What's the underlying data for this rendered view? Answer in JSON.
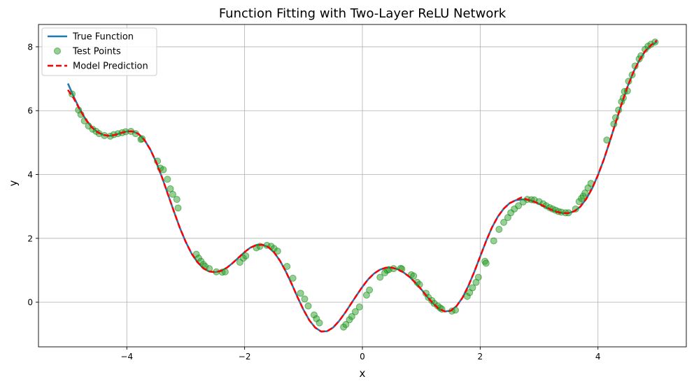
{
  "chart_data": {
    "type": "line",
    "title": "Function Fitting with Two-Layer ReLU Network",
    "xlabel": "x",
    "ylabel": "y",
    "xlim": [
      -5.5,
      5.5
    ],
    "ylim": [
      -1.4,
      8.7
    ],
    "xticks": [
      -4,
      -2,
      0,
      2,
      4
    ],
    "yticks": [
      0,
      2,
      4,
      6,
      8
    ],
    "grid": true,
    "legend_position": "top-left",
    "legend": [
      "True Function",
      "Test Points",
      "Model Prediction"
    ],
    "colors": {
      "true_function": "#1f77b4",
      "test_points_fill": "#2ca02c",
      "test_points_edge": "#008000",
      "model_prediction": "#ff0000",
      "grid": "#b0b0b0"
    },
    "series": [
      {
        "name": "True Function",
        "style": "solid",
        "x": [
          -5.0,
          -4.9,
          -4.8,
          -4.7,
          -4.6,
          -4.5,
          -4.4,
          -4.3,
          -4.2,
          -4.1,
          -4.0,
          -3.9,
          -3.8,
          -3.7,
          -3.6,
          -3.5,
          -3.4,
          -3.3,
          -3.2,
          -3.1,
          -3.0,
          -2.9,
          -2.8,
          -2.7,
          -2.6,
          -2.5,
          -2.4,
          -2.3,
          -2.2,
          -2.1,
          -2.0,
          -1.9,
          -1.8,
          -1.7,
          -1.6,
          -1.5,
          -1.4,
          -1.3,
          -1.2,
          -1.1,
          -1.0,
          -0.9,
          -0.8,
          -0.7,
          -0.6,
          -0.5,
          -0.4,
          -0.3,
          -0.2,
          -0.1,
          0.0,
          0.1,
          0.2,
          0.3,
          0.4,
          0.5,
          0.6,
          0.7,
          0.8,
          0.9,
          1.0,
          1.1,
          1.2,
          1.3,
          1.4,
          1.5,
          1.6,
          1.7,
          1.8,
          1.9,
          2.0,
          2.1,
          2.2,
          2.3,
          2.4,
          2.5,
          2.6,
          2.7,
          2.8,
          2.9,
          3.0,
          3.1,
          3.2,
          3.3,
          3.4,
          3.5,
          3.6,
          3.7,
          3.8,
          3.9,
          4.0,
          4.1,
          4.2,
          4.3,
          4.4,
          4.5,
          4.6,
          4.7,
          4.8,
          4.9,
          5.0
        ],
        "y": [
          6.85,
          6.43,
          6.05,
          5.73,
          5.49,
          5.33,
          5.24,
          5.21,
          5.24,
          5.3,
          5.35,
          5.35,
          5.27,
          5.08,
          4.78,
          4.38,
          3.9,
          3.37,
          2.84,
          2.33,
          1.89,
          1.52,
          1.25,
          1.06,
          0.96,
          0.94,
          0.98,
          1.08,
          1.23,
          1.4,
          1.57,
          1.71,
          1.79,
          1.8,
          1.73,
          1.56,
          1.3,
          0.96,
          0.57,
          0.15,
          -0.24,
          -0.57,
          -0.8,
          -0.92,
          -0.91,
          -0.8,
          -0.6,
          -0.35,
          -0.07,
          0.21,
          0.48,
          0.72,
          0.9,
          1.02,
          1.08,
          1.08,
          1.03,
          0.93,
          0.79,
          0.61,
          0.4,
          0.17,
          -0.04,
          -0.21,
          -0.29,
          -0.27,
          -0.12,
          0.14,
          0.51,
          0.95,
          1.43,
          1.91,
          2.34,
          2.68,
          2.93,
          3.1,
          3.19,
          3.22,
          3.21,
          3.16,
          3.08,
          2.99,
          2.9,
          2.83,
          2.79,
          2.79,
          2.85,
          2.99,
          3.23,
          3.56,
          3.98,
          4.47,
          5.03,
          5.62,
          6.2,
          6.74,
          7.2,
          7.57,
          7.86,
          8.05,
          8.15
        ]
      },
      {
        "name": "Model Prediction",
        "style": "dashed",
        "x": [
          -5.0,
          -4.9,
          -4.8,
          -4.7,
          -4.6,
          -4.5,
          -4.4,
          -4.3,
          -4.2,
          -4.1,
          -4.0,
          -3.9,
          -3.8,
          -3.7,
          -3.6,
          -3.5,
          -3.4,
          -3.3,
          -3.2,
          -3.1,
          -3.0,
          -2.9,
          -2.8,
          -2.7,
          -2.6,
          -2.5,
          -2.4,
          -2.3,
          -2.2,
          -2.1,
          -2.0,
          -1.9,
          -1.8,
          -1.7,
          -1.6,
          -1.5,
          -1.4,
          -1.3,
          -1.2,
          -1.1,
          -1.0,
          -0.9,
          -0.8,
          -0.7,
          -0.6,
          -0.5,
          -0.4,
          -0.3,
          -0.2,
          -0.1,
          0.0,
          0.1,
          0.2,
          0.3,
          0.4,
          0.5,
          0.6,
          0.7,
          0.8,
          0.9,
          1.0,
          1.1,
          1.2,
          1.3,
          1.4,
          1.5,
          1.6,
          1.7,
          1.8,
          1.9,
          2.0,
          2.1,
          2.2,
          2.3,
          2.4,
          2.5,
          2.6,
          2.7,
          2.8,
          2.9,
          3.0,
          3.1,
          3.2,
          3.3,
          3.4,
          3.5,
          3.6,
          3.7,
          3.8,
          3.9,
          4.0,
          4.1,
          4.2,
          4.3,
          4.4,
          4.5,
          4.6,
          4.7,
          4.8,
          4.9,
          5.0
        ],
        "y": [
          6.65,
          6.38,
          6.04,
          5.73,
          5.49,
          5.33,
          5.24,
          5.21,
          5.24,
          5.3,
          5.35,
          5.35,
          5.27,
          5.08,
          4.78,
          4.38,
          3.9,
          3.37,
          2.84,
          2.33,
          1.89,
          1.52,
          1.25,
          1.06,
          0.96,
          0.94,
          0.98,
          1.08,
          1.23,
          1.4,
          1.57,
          1.71,
          1.79,
          1.8,
          1.73,
          1.56,
          1.3,
          0.96,
          0.57,
          0.15,
          -0.24,
          -0.57,
          -0.8,
          -0.92,
          -0.91,
          -0.8,
          -0.6,
          -0.35,
          -0.07,
          0.21,
          0.48,
          0.72,
          0.9,
          1.02,
          1.08,
          1.08,
          1.03,
          0.93,
          0.79,
          0.61,
          0.4,
          0.17,
          -0.04,
          -0.21,
          -0.29,
          -0.27,
          -0.12,
          0.14,
          0.51,
          0.95,
          1.43,
          1.91,
          2.34,
          2.68,
          2.93,
          3.1,
          3.19,
          3.28,
          3.21,
          3.16,
          3.08,
          2.99,
          2.9,
          2.83,
          2.79,
          2.79,
          2.85,
          2.99,
          3.23,
          3.56,
          3.98,
          4.47,
          5.03,
          5.62,
          6.2,
          6.74,
          7.2,
          7.57,
          7.86,
          8.05,
          8.2
        ]
      }
    ],
    "test_points": {
      "name": "Test Points",
      "x": [
        -4.93,
        -4.82,
        -4.78,
        -4.72,
        -4.65,
        -4.58,
        -4.52,
        -4.47,
        -4.38,
        -4.28,
        -4.22,
        -4.15,
        -4.08,
        -4.02,
        -3.93,
        -3.85,
        -3.76,
        -3.74,
        -3.48,
        -3.43,
        -3.38,
        -3.31,
        -3.26,
        -3.22,
        -3.15,
        -3.13,
        -2.82,
        -2.78,
        -2.74,
        -2.7,
        -2.67,
        -2.6,
        -2.48,
        -2.38,
        -2.33,
        -2.08,
        -2.02,
        -1.98,
        -1.8,
        -1.74,
        -1.62,
        -1.55,
        -1.5,
        -1.44,
        -1.28,
        -1.18,
        -1.05,
        -0.98,
        -0.92,
        -0.82,
        -0.78,
        -0.73,
        -0.32,
        -0.28,
        -0.22,
        -0.18,
        -0.12,
        -0.05,
        0.07,
        0.12,
        0.3,
        0.38,
        0.42,
        0.45,
        0.53,
        0.65,
        0.67,
        0.83,
        0.87,
        0.93,
        0.97,
        1.08,
        1.12,
        1.18,
        1.22,
        1.28,
        1.32,
        1.35,
        1.52,
        1.58,
        1.78,
        1.82,
        1.87,
        1.93,
        1.97,
        2.08,
        2.1,
        2.23,
        2.32,
        2.4,
        2.47,
        2.52,
        2.58,
        2.65,
        2.73,
        2.8,
        2.87,
        2.92,
        3.0,
        3.07,
        3.12,
        3.18,
        3.23,
        3.28,
        3.33,
        3.38,
        3.45,
        3.5,
        3.62,
        3.68,
        3.72,
        3.75,
        3.78,
        3.83,
        3.88,
        4.15,
        4.27,
        4.3,
        4.35,
        4.4,
        4.43,
        4.45,
        4.5,
        4.52,
        4.58,
        4.63,
        4.7,
        4.73,
        4.8,
        4.85,
        4.9,
        4.97
      ],
      "y": [
        6.52,
        6.02,
        5.88,
        5.68,
        5.52,
        5.42,
        5.35,
        5.28,
        5.22,
        5.2,
        5.25,
        5.28,
        5.31,
        5.34,
        5.35,
        5.28,
        5.1,
        5.12,
        4.42,
        4.2,
        4.15,
        3.85,
        3.55,
        3.38,
        3.22,
        2.95,
        1.5,
        1.38,
        1.28,
        1.18,
        1.12,
        1.05,
        0.95,
        0.94,
        0.95,
        1.25,
        1.38,
        1.45,
        1.7,
        1.75,
        1.78,
        1.75,
        1.68,
        1.6,
        1.12,
        0.75,
        0.28,
        0.1,
        -0.12,
        -0.4,
        -0.52,
        -0.65,
        -0.78,
        -0.7,
        -0.55,
        -0.45,
        -0.3,
        -0.15,
        0.22,
        0.38,
        0.78,
        0.92,
        1.0,
        1.02,
        1.05,
        1.06,
        1.04,
        0.86,
        0.82,
        0.62,
        0.55,
        0.28,
        0.15,
        0.05,
        -0.04,
        -0.12,
        -0.18,
        -0.22,
        -0.28,
        -0.25,
        0.18,
        0.3,
        0.45,
        0.62,
        0.78,
        1.28,
        1.22,
        1.92,
        2.28,
        2.5,
        2.65,
        2.8,
        2.92,
        3.02,
        3.14,
        3.22,
        3.21,
        3.2,
        3.15,
        3.08,
        3.02,
        2.96,
        2.92,
        2.88,
        2.84,
        2.82,
        2.8,
        2.8,
        2.92,
        3.15,
        3.25,
        3.32,
        3.42,
        3.58,
        3.72,
        5.08,
        5.58,
        5.78,
        6.02,
        6.28,
        6.4,
        6.6,
        6.62,
        6.92,
        7.12,
        7.4,
        7.62,
        7.72,
        7.92,
        8.02,
        8.08,
        8.15
      ]
    }
  }
}
